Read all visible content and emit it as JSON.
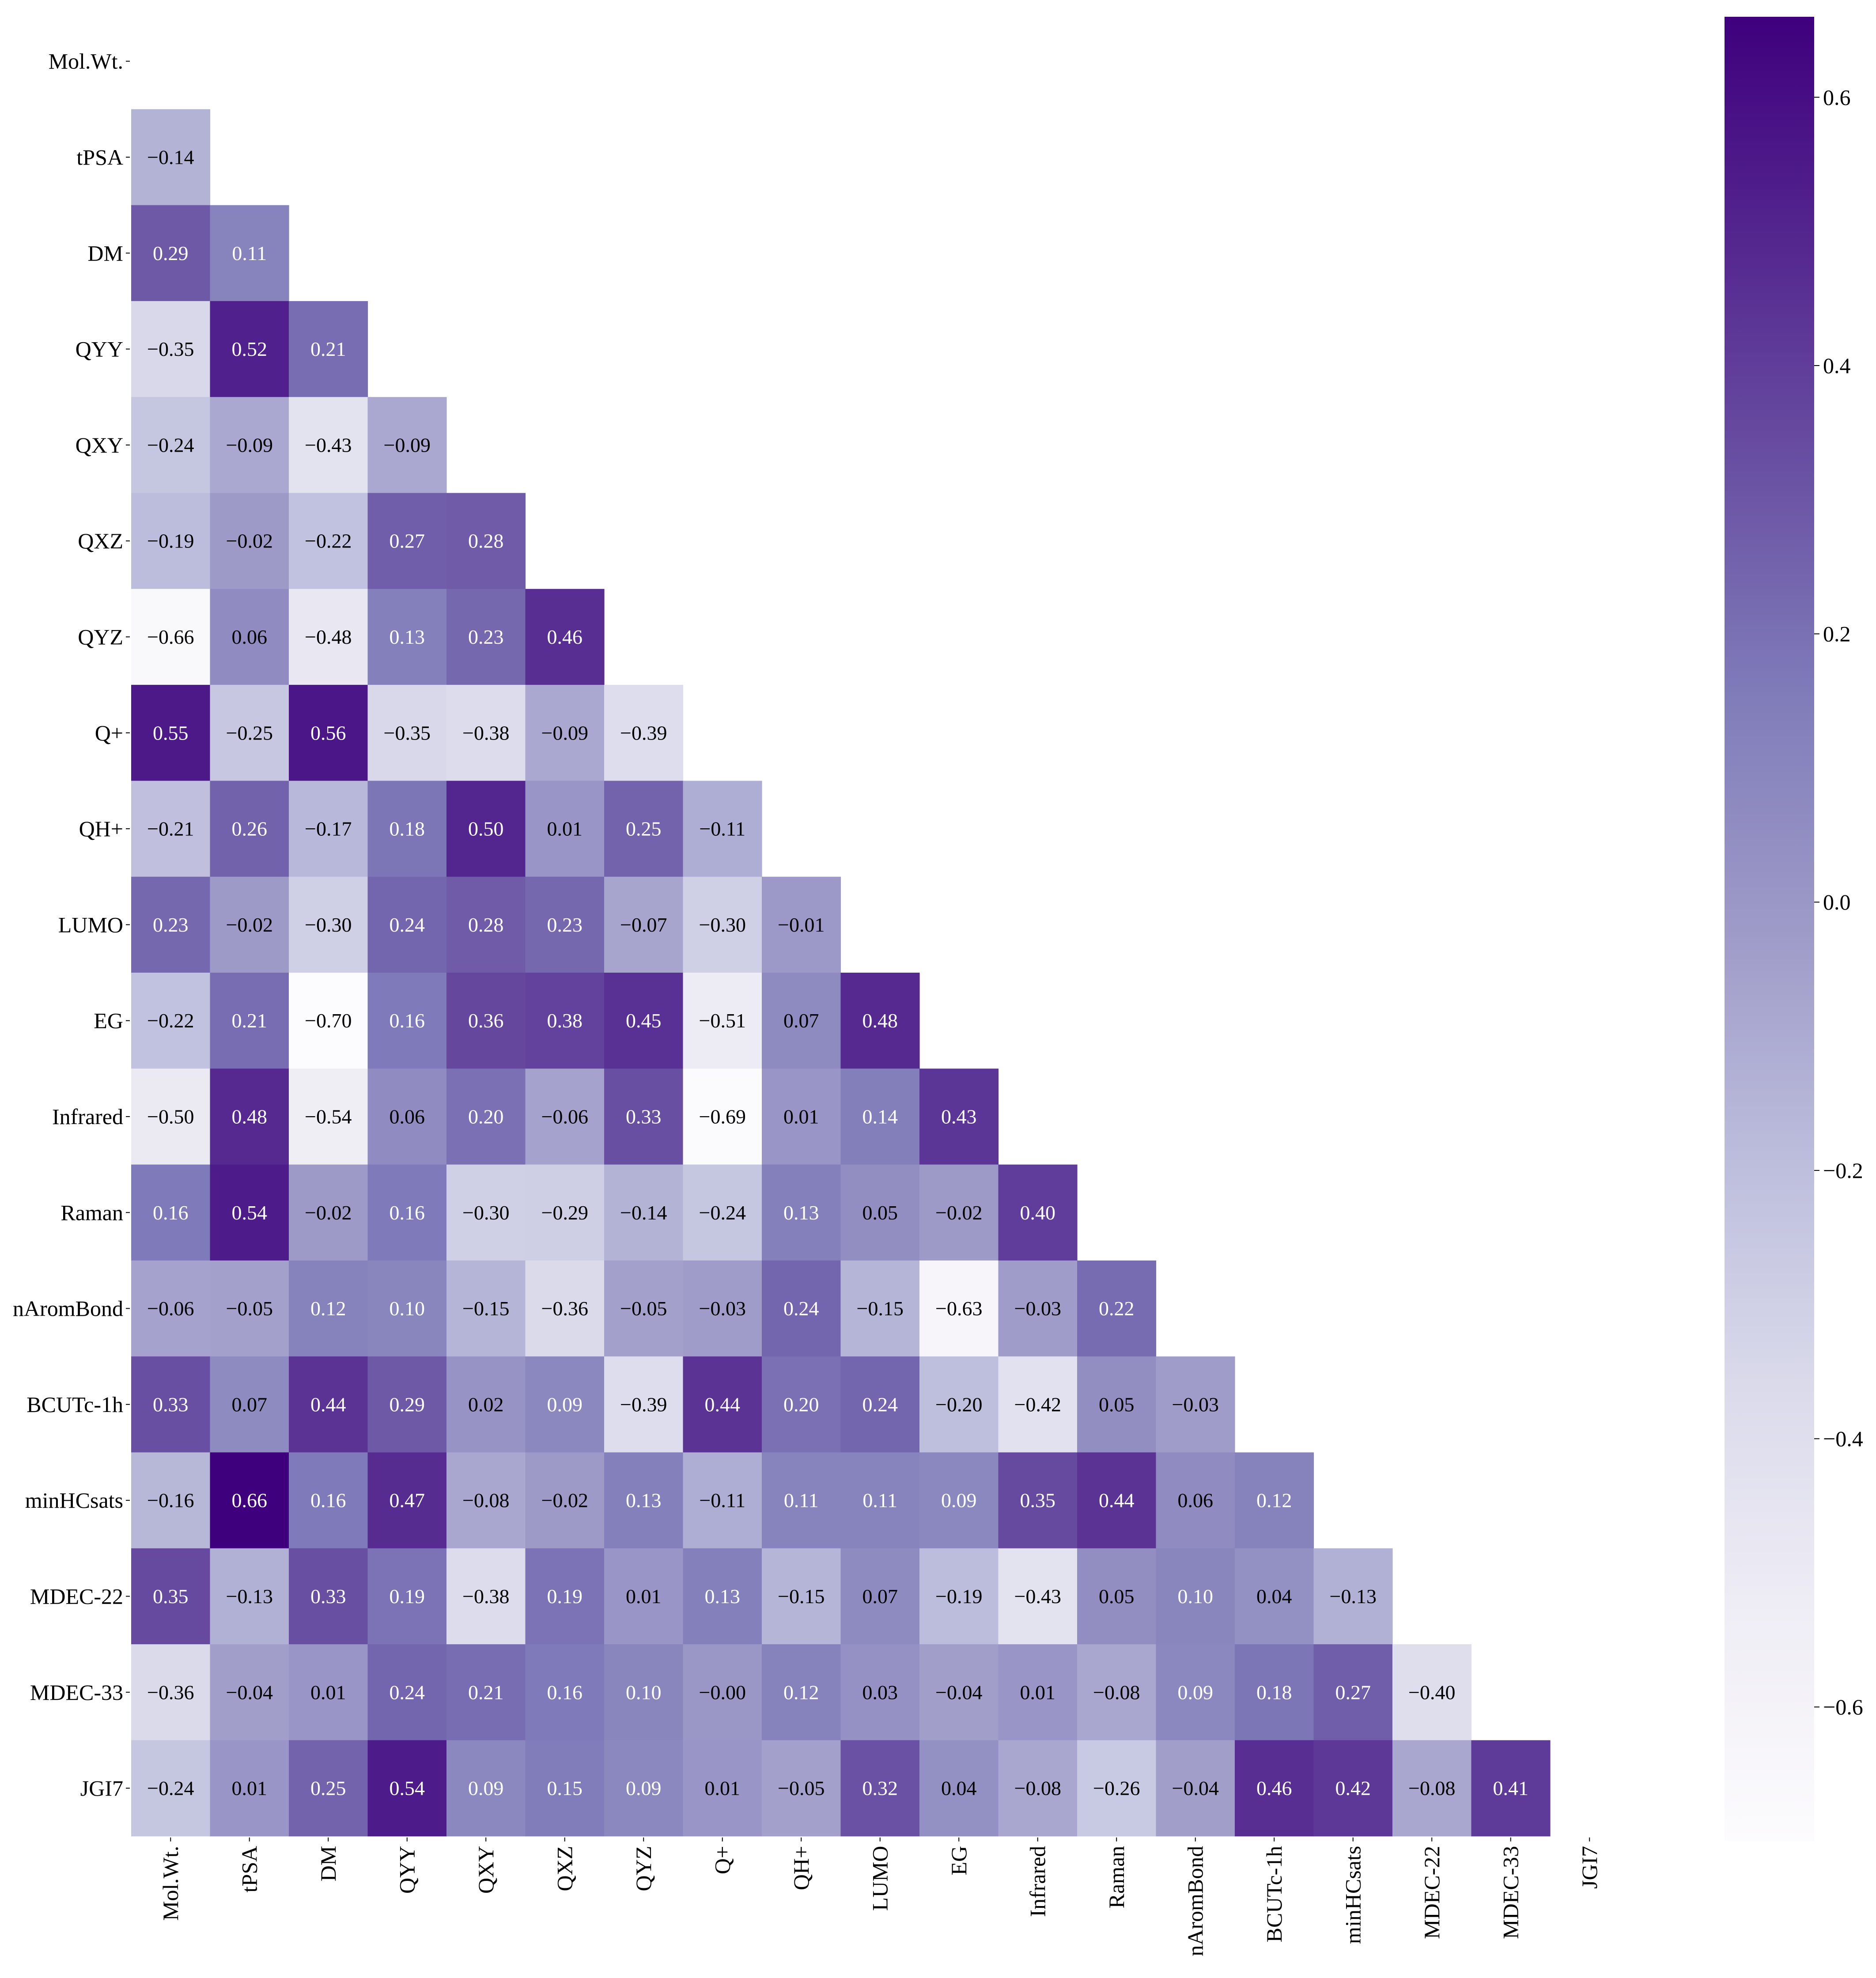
{
  "chart_data": {
    "type": "heatmap",
    "variables": [
      "Mol.Wt.",
      "tPSA",
      "DM",
      "QYY",
      "QXY",
      "QXZ",
      "QYZ",
      "Q+",
      "QH+",
      "LUMO",
      "EG",
      "Infrared",
      "Raman",
      "nAromBond",
      "BCUTc-1h",
      "minHCsats",
      "MDEC-22",
      "MDEC-33",
      "JGI7"
    ],
    "display": "lower-triangle (diagonal masked)",
    "colormap": "Purples",
    "annotations": true,
    "rows": [
      [],
      [
        -0.14
      ],
      [
        0.29,
        0.11
      ],
      [
        -0.35,
        0.52,
        0.21
      ],
      [
        -0.24,
        -0.09,
        -0.43,
        -0.09
      ],
      [
        -0.19,
        -0.02,
        -0.22,
        0.27,
        0.28
      ],
      [
        -0.66,
        0.06,
        -0.48,
        0.13,
        0.23,
        0.46
      ],
      [
        0.55,
        -0.25,
        0.56,
        -0.35,
        -0.38,
        -0.09,
        -0.39
      ],
      [
        -0.21,
        0.26,
        -0.17,
        0.18,
        0.5,
        0.01,
        0.25,
        -0.11
      ],
      [
        0.23,
        -0.02,
        -0.3,
        0.24,
        0.28,
        0.23,
        -0.07,
        -0.3,
        -0.01
      ],
      [
        -0.22,
        0.21,
        -0.7,
        0.16,
        0.36,
        0.38,
        0.45,
        -0.51,
        0.07,
        0.48
      ],
      [
        -0.5,
        0.48,
        -0.54,
        0.06,
        0.2,
        -0.06,
        0.33,
        -0.69,
        0.01,
        0.14,
        0.43
      ],
      [
        0.16,
        0.54,
        -0.02,
        0.16,
        -0.3,
        -0.29,
        -0.14,
        -0.24,
        0.13,
        0.05,
        -0.02,
        0.4
      ],
      [
        -0.06,
        -0.05,
        0.12,
        0.1,
        -0.15,
        -0.36,
        -0.05,
        -0.03,
        0.24,
        -0.15,
        -0.63,
        -0.03,
        0.22
      ],
      [
        0.33,
        0.07,
        0.44,
        0.29,
        0.02,
        0.09,
        -0.39,
        0.44,
        0.2,
        0.24,
        -0.2,
        -0.42,
        0.05,
        -0.03
      ],
      [
        -0.16,
        0.66,
        0.16,
        0.47,
        -0.08,
        -0.02,
        0.13,
        -0.11,
        0.11,
        0.11,
        0.09,
        0.35,
        0.44,
        0.06,
        0.12
      ],
      [
        0.35,
        -0.13,
        0.33,
        0.19,
        -0.38,
        0.19,
        0.01,
        0.13,
        -0.15,
        0.07,
        -0.19,
        -0.43,
        0.05,
        0.1,
        0.04,
        -0.13
      ],
      [
        -0.36,
        -0.04,
        0.01,
        0.24,
        0.21,
        0.16,
        0.1,
        -0.0,
        0.12,
        0.03,
        -0.04,
        0.01,
        -0.08,
        0.09,
        0.18,
        0.27,
        -0.4
      ],
      [
        -0.24,
        0.01,
        0.25,
        0.54,
        0.09,
        0.15,
        0.09,
        0.01,
        -0.05,
        0.32,
        0.04,
        -0.08,
        -0.26,
        -0.04,
        0.46,
        0.42,
        -0.08,
        0.41
      ]
    ],
    "colorbar": {
      "vmin": -0.7,
      "vmax": 0.66,
      "ticks": [
        0.6,
        0.4,
        0.2,
        0.0,
        -0.2,
        -0.4,
        -0.6
      ],
      "tick_labels": [
        "0.6",
        "0.4",
        "0.2",
        "0.0",
        "−0.2",
        "−0.4",
        "−0.6"
      ]
    }
  }
}
